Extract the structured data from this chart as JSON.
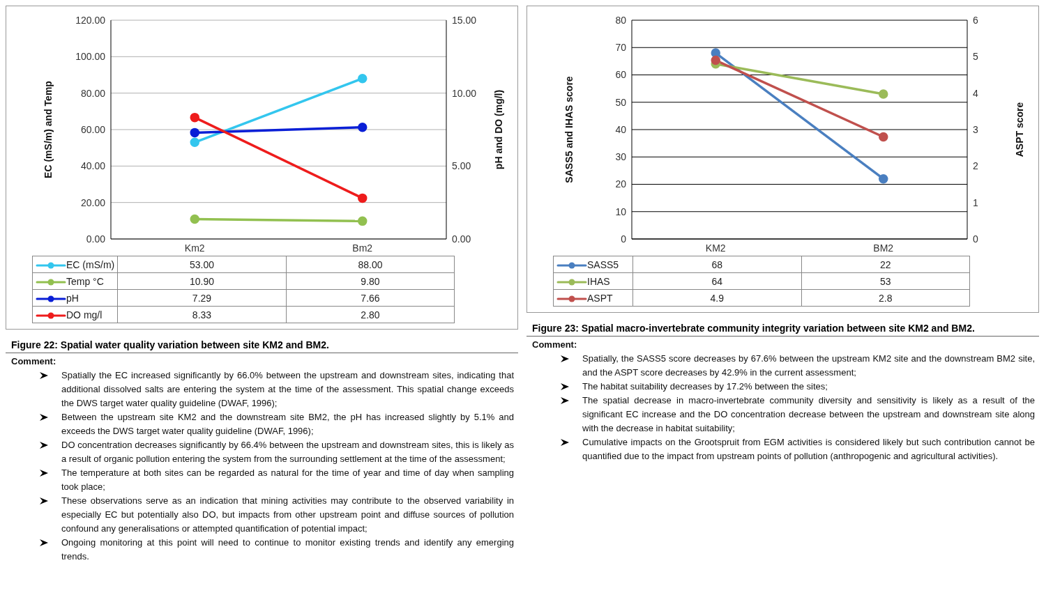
{
  "chart_data": [
    {
      "type": "line",
      "title": "Figure 22: Spatial water quality variation between site KM2 and BM2.",
      "ylabel": "EC (mS/m) and Temp",
      "y2label": "pH and DO (mg/l)",
      "categories": [
        "Km2",
        "Bm2"
      ],
      "series": [
        {
          "name": "EC (mS/m)",
          "color": "#33c6ee",
          "values": [
            53.0,
            88.0
          ],
          "value_labels": [
            "53.00",
            "88.00"
          ]
        },
        {
          "name": "Temp °C",
          "color": "#92c050",
          "values": [
            10.9,
            9.8
          ],
          "value_labels": [
            "10.90",
            "9.80"
          ]
        },
        {
          "name": "pH",
          "color": "#0a1fd6",
          "values": [
            7.29,
            7.66
          ],
          "axis": "y2",
          "value_labels": [
            "7.29",
            "7.66"
          ]
        },
        {
          "name": "DO mg/l",
          "color": "#ee1c1c",
          "values": [
            8.33,
            2.8
          ],
          "axis": "y2",
          "value_labels": [
            "8.33",
            "2.80"
          ]
        }
      ],
      "ylim": [
        0,
        120
      ],
      "yticks": [
        {
          "value": 0,
          "label": "0.00"
        },
        {
          "value": 20,
          "label": "20.00"
        },
        {
          "value": 40,
          "label": "40.00"
        },
        {
          "value": 60,
          "label": "60.00"
        },
        {
          "value": 80,
          "label": "80.00"
        },
        {
          "value": 100,
          "label": "100.00"
        },
        {
          "value": 120,
          "label": "120.00"
        }
      ],
      "y2lim": [
        0,
        15
      ],
      "y2ticks": [
        {
          "value": 0,
          "label": "0.00"
        },
        {
          "value": 5,
          "label": "5.00"
        },
        {
          "value": 10,
          "label": "10.00"
        },
        {
          "value": 15,
          "label": "15.00"
        }
      ],
      "grid": "y",
      "legend": "bottom",
      "marker": "circle",
      "data_labels": true,
      "annotations": [
        "Comment:",
        "Spatially the EC increased significantly by 66.0% between the upstream and downstream sites, indicating that additional dissolved salts are entering the system at the time of the assessment. This spatial change exceeds the DWS target water quality guideline (DWAF, 1996);",
        "Between the upstream site KM2 and the downstream site BM2, the pH has increased slightly by 5.1% and exceeds the DWS target water quality guideline (DWAF, 1996);",
        "DO concentration decreases significantly by 66.4% between the upstream and downstream sites, this is likely as a result of organic pollution entering the system from the surrounding settlement at the time of the assessment;",
        "The temperature at both sites can be regarded as natural for the time of year and time of day when sampling took place;",
        "These observations serve as an indication that mining activities may contribute to the observed variability in especially EC but potentially also DO, but impacts from other upstream point and diffuse sources of pollution confound any generalisations or attempted quantification of potential impact;",
        "Ongoing monitoring at this point will need to continue to monitor existing trends and identify any emerging trends."
      ]
    },
    {
      "type": "line",
      "title": "Figure 23: Spatial macro-invertebrate community integrity variation between site KM2 and BM2.",
      "ylabel": "SASS5 and IHAS score",
      "y2label": "ASPT score",
      "categories": [
        "KM2",
        "BM2"
      ],
      "series": [
        {
          "name": "SASS5",
          "color": "#4a7fc0",
          "values": [
            68,
            22
          ]
        },
        {
          "name": "IHAS",
          "color": "#9bbb59",
          "values": [
            64,
            53
          ]
        },
        {
          "name": "ASPT",
          "color": "#c0504d",
          "values": [
            4.9,
            2.8
          ],
          "axis": "y2"
        }
      ],
      "ylim": [
        0,
        80
      ],
      "yticks": [
        0,
        10,
        20,
        30,
        40,
        50,
        60,
        70,
        80
      ],
      "y2lim": [
        0,
        6
      ],
      "y2ticks": [
        0,
        1,
        2,
        3,
        4,
        5,
        6
      ],
      "grid": "y",
      "legend": "bottom",
      "marker": "circle",
      "data_labels": true,
      "annotations": [
        "Comment:",
        "Spatially, the SASS5 score decreases by 67.6% between the upstream KM2 site and the downstream BM2 site, and the ASPT score decreases by 42.9% in the current assessment;",
        "The habitat suitability decreases by 17.2% between the sites;",
        "The spatial decrease in macro-invertebrate community diversity and sensitivity is likely as a result of the significant EC increase and the DO concentration decrease between the upstream and downstream site along with the decrease in habitat suitability;",
        "Cumulative impacts on the Grootspruit from EGM activities is considered likely but such contribution cannot be quantified due to the impact from upstream points of pollution (anthropogenic and agricultural activities)."
      ]
    }
  ]
}
